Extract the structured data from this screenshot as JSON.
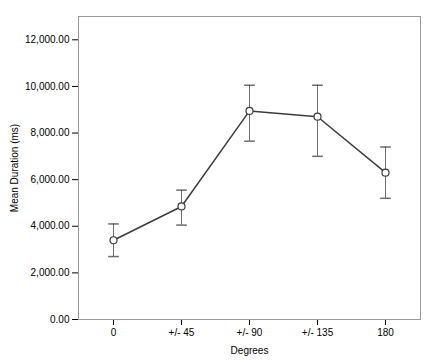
{
  "chart_data": {
    "type": "line",
    "categories": [
      "0",
      "+/- 45",
      "+/- 90",
      "+/- 135",
      "180"
    ],
    "values": [
      3400,
      4850,
      8950,
      8700,
      6300
    ],
    "error_lower": [
      700,
      800,
      1300,
      1700,
      1100
    ],
    "error_upper": [
      700,
      700,
      1100,
      1350,
      1100
    ],
    "xlabel": "Degrees",
    "ylabel": "Mean Duration (ms)",
    "ylim": [
      0,
      13000
    ],
    "yticks": [
      {
        "value": 0,
        "label": "0.00"
      },
      {
        "value": 2000,
        "label": "2,000.00"
      },
      {
        "value": 4000,
        "label": "4,000.00"
      },
      {
        "value": 6000,
        "label": "6,000.00"
      },
      {
        "value": 8000,
        "label": "8,000.00"
      },
      {
        "value": 10000,
        "label": "10,000.00"
      },
      {
        "value": 12000,
        "label": "12,000.00"
      }
    ],
    "color": "#3c3c3c",
    "marker": "circle",
    "line_style": "solid",
    "grid": false
  }
}
